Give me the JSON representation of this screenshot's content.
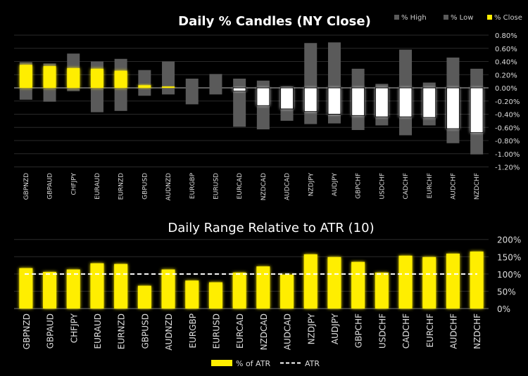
{
  "chart_data": [
    {
      "type": "candlestick-bar",
      "title": "Daily % Candles (NY Close)",
      "legend": [
        "% High",
        "% Low",
        "% Close"
      ],
      "legend_position": "top-right",
      "colors": {
        "range": "#5a5a5a",
        "close_up": "#ffee00",
        "close_down": "#ffffff"
      },
      "categories": [
        "GBPNZD",
        "GBPAUD",
        "CHFJPY",
        "EURAUD",
        "EURNZD",
        "GBPUSD",
        "AUDNZD",
        "EURGBP",
        "EURUSD",
        "EURCAD",
        "NZDCAD",
        "AUDCAD",
        "NZDJPY",
        "AUDJPY",
        "GBPCHF",
        "USDCHF",
        "CADCHF",
        "EURCHF",
        "AUDCHF",
        "NZDCHF"
      ],
      "high": [
        0.39,
        0.37,
        0.52,
        0.4,
        0.44,
        0.27,
        0.4,
        0.14,
        0.21,
        0.14,
        0.11,
        0.02,
        0.68,
        0.69,
        0.29,
        0.06,
        0.58,
        0.08,
        0.46,
        0.29
      ],
      "low": [
        -0.18,
        -0.21,
        -0.05,
        -0.37,
        -0.35,
        -0.12,
        -0.1,
        -0.25,
        -0.1,
        -0.59,
        -0.63,
        -0.5,
        -0.55,
        -0.54,
        -0.64,
        -0.57,
        -0.72,
        -0.57,
        -0.84,
        -1.01
      ],
      "close": [
        0.35,
        0.33,
        0.3,
        0.29,
        0.26,
        0.04,
        0.02,
        0.0,
        0.0,
        -0.05,
        -0.27,
        -0.32,
        -0.36,
        -0.4,
        -0.42,
        -0.44,
        -0.44,
        -0.45,
        -0.62,
        -0.68
      ],
      "ylim": [
        -1.2,
        0.8
      ],
      "yticks": [
        "0.80%",
        "0.60%",
        "0.40%",
        "0.20%",
        "0.00%",
        "-0.20%",
        "-0.40%",
        "-0.60%",
        "-0.80%",
        "-1.00%",
        "-1.20%"
      ],
      "grid": true
    },
    {
      "type": "bar",
      "title": "Daily Range Relative to ATR (10)",
      "legend": [
        "% of ATR",
        "ATR"
      ],
      "legend_position": "bottom",
      "colors": {
        "bar": "#ffee00",
        "atr": "#ffffff"
      },
      "categories": [
        "GBPNZD",
        "GBPAUD",
        "CHFJPY",
        "EURAUD",
        "EURNZD",
        "GBPUSD",
        "AUDNZD",
        "EURGBP",
        "EURUSD",
        "EURCAD",
        "NZDCAD",
        "AUDCAD",
        "NZDJPY",
        "AUDJPY",
        "GBPCHF",
        "USDCHF",
        "CADCHF",
        "EURCHF",
        "AUDCHF",
        "NZDCHF"
      ],
      "values": [
        117,
        106,
        113,
        131,
        129,
        66,
        113,
        81,
        76,
        104,
        122,
        98,
        157,
        149,
        135,
        104,
        153,
        149,
        159,
        165
      ],
      "atr": 100,
      "ylim": [
        0,
        200
      ],
      "yticks": [
        "200%",
        "150%",
        "100%",
        "50%",
        "0%"
      ],
      "grid": true
    }
  ]
}
